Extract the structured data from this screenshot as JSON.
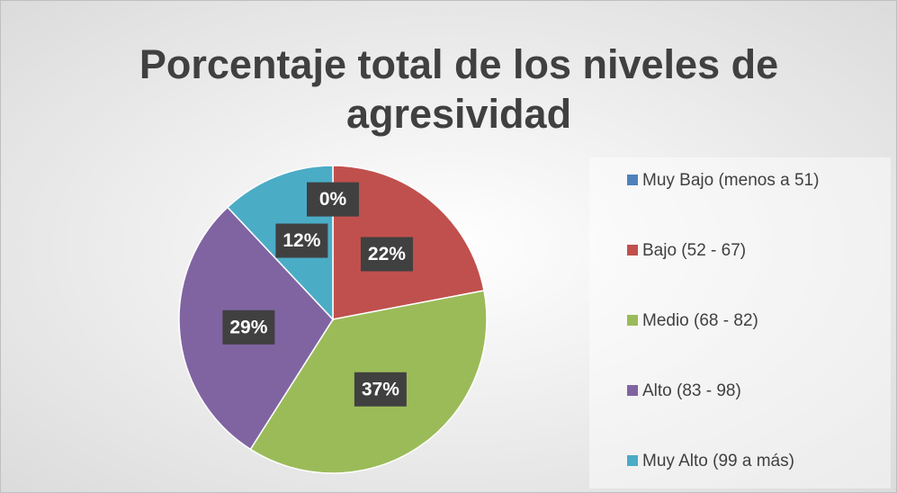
{
  "chart_data": {
    "type": "pie",
    "title": "Porcentaje total de los niveles de agresividad",
    "categories": [
      "Muy Bajo (menos a 51)",
      "Bajo (52 - 67)",
      "Medio (68 - 82)",
      "Alto (83 - 98)",
      "Muy Alto (99 a más)"
    ],
    "values": [
      0,
      22,
      37,
      29,
      12
    ],
    "value_labels": [
      "0%",
      "22%",
      "37%",
      "29%",
      "12%"
    ],
    "colors": [
      "#4f81bd",
      "#c0504d",
      "#9bbb59",
      "#8064a2",
      "#4bacc6"
    ],
    "legend": "right"
  }
}
